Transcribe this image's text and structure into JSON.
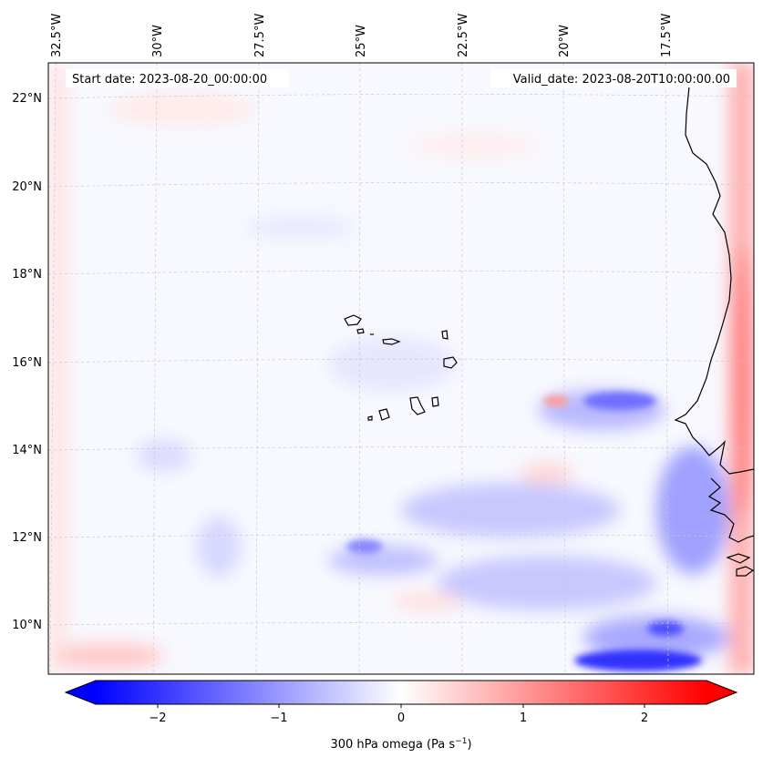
{
  "map": {
    "start_date_label": "Start date: 2023-08-20_00:00:00",
    "valid_date_label": "Valid_date: 2023-08-20T10:00:00.00",
    "lon_labels": [
      "32.5°W",
      "30°W",
      "27.5°W",
      "25°W",
      "22.5°W",
      "20°W",
      "17.5°W"
    ],
    "lat_labels": [
      "22°N",
      "20°N",
      "18°N",
      "16°N",
      "14°N",
      "12°N",
      "10°N"
    ],
    "field": "300 hPa omega",
    "projection_extent": {
      "lon_min": -33,
      "lon_max": -15.5,
      "lat_min": 9,
      "lat_max": 22.7
    }
  },
  "colorbar": {
    "label_prefix": "300 hPa omega (Pa s",
    "label_sup": "−1",
    "label_suffix": ")",
    "ticks": [
      "−2",
      "−1",
      "0",
      "1",
      "2"
    ],
    "range": [
      -2.7,
      2.7
    ],
    "colormap": "bwr",
    "color_min": "#0000ff",
    "color_mid": "#ffffff",
    "color_max": "#ff0000"
  }
}
